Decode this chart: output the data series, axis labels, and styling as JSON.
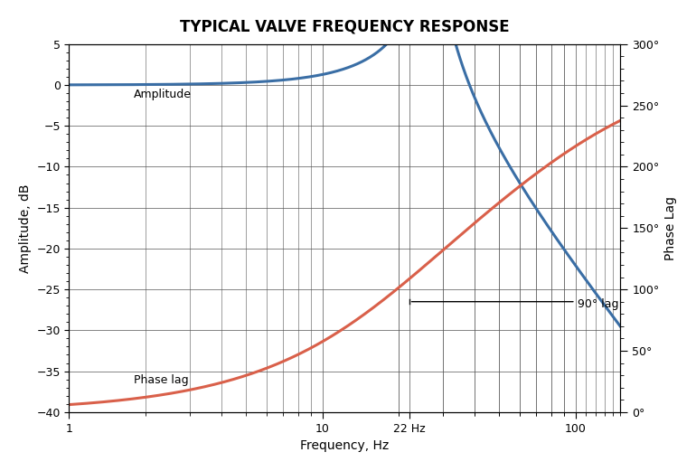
{
  "title": "TYPICAL VALVE FREQUENCY RESPONSE",
  "xlabel": "Frequency, Hz",
  "ylabel_left": "Amplitude, dB",
  "ylabel_right": "Phase Lag",
  "xlim": [
    1,
    150
  ],
  "ylim_left": [
    -40,
    5
  ],
  "ylim_right": [
    0,
    300
  ],
  "amplitude_color": "#3a6ea5",
  "phase_color": "#d9604a",
  "annotation_90lag": "90° lag",
  "annotation_22hz": "22 Hz",
  "label_amplitude": "Amplitude",
  "label_phase": "Phase lag",
  "bg_color": "#ffffff",
  "grid_color": "#555555",
  "title_fontsize": 12,
  "axis_label_fontsize": 10,
  "tick_fontsize": 9,
  "annotation_fontsize": 9,
  "line_width": 2.2,
  "right_yticks": [
    0,
    50,
    100,
    150,
    200,
    250,
    300
  ],
  "right_yticklabels": [
    "0°",
    "50°",
    "100°",
    "150°",
    "200°",
    "250°",
    "300°"
  ]
}
